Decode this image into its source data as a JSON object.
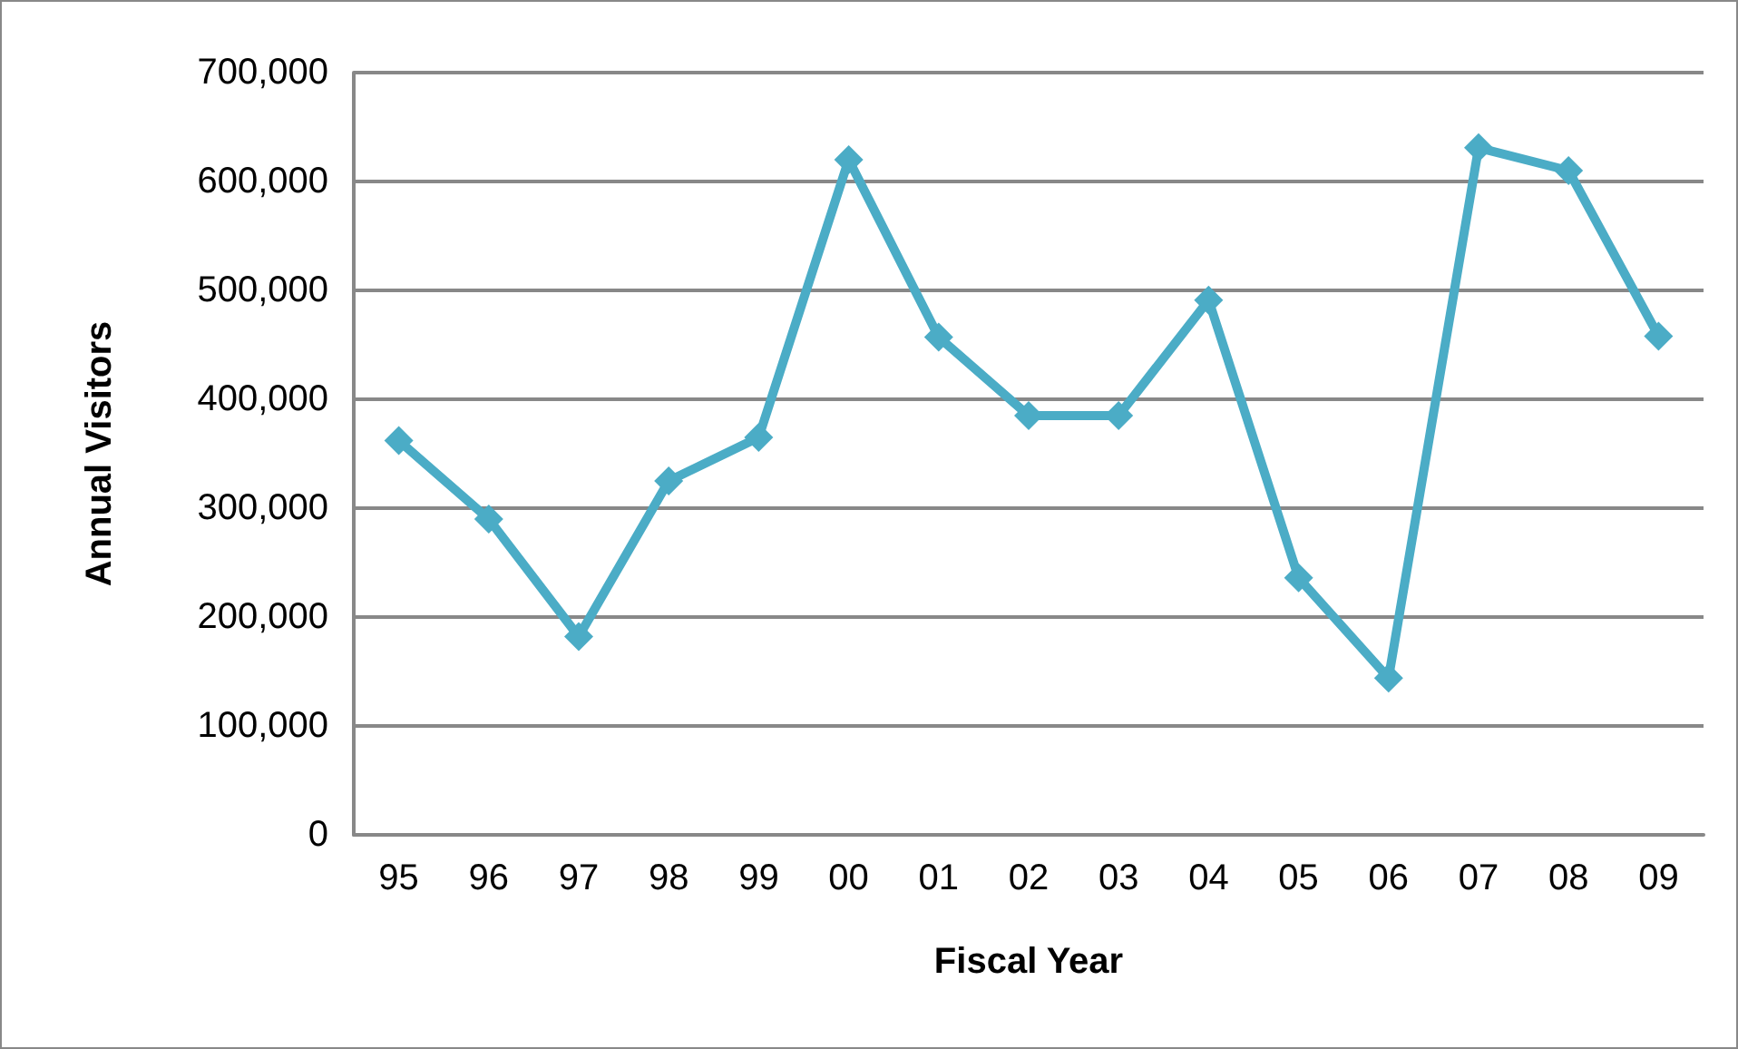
{
  "chart_data": {
    "type": "line",
    "xlabel": "Fiscal Year",
    "ylabel": "Annual Visitors",
    "categories": [
      "95",
      "96",
      "97",
      "98",
      "99",
      "00",
      "01",
      "02",
      "03",
      "04",
      "05",
      "06",
      "07",
      "08",
      "09"
    ],
    "series": [
      {
        "color": "#4bacc6",
        "values": [
          362000,
          290000,
          182000,
          325000,
          365000,
          620000,
          457000,
          385000,
          385000,
          491000,
          236000,
          144000,
          631000,
          610000,
          458000
        ]
      }
    ],
    "ylim": [
      0,
      700000
    ],
    "yticks": [
      0,
      {
        "value": 100000,
        "label": "100,000"
      },
      {
        "value": 200000,
        "label": "200,000"
      },
      {
        "value": 300000,
        "label": "300,000"
      },
      {
        "value": 400000,
        "label": "400,000"
      },
      {
        "value": 500000,
        "label": "500,000"
      },
      {
        "value": 600000,
        "label": "600,000"
      },
      {
        "value": 700000,
        "label": "700,000"
      }
    ],
    "grid": "y",
    "marker": "diamond",
    "line_style": "solid"
  }
}
